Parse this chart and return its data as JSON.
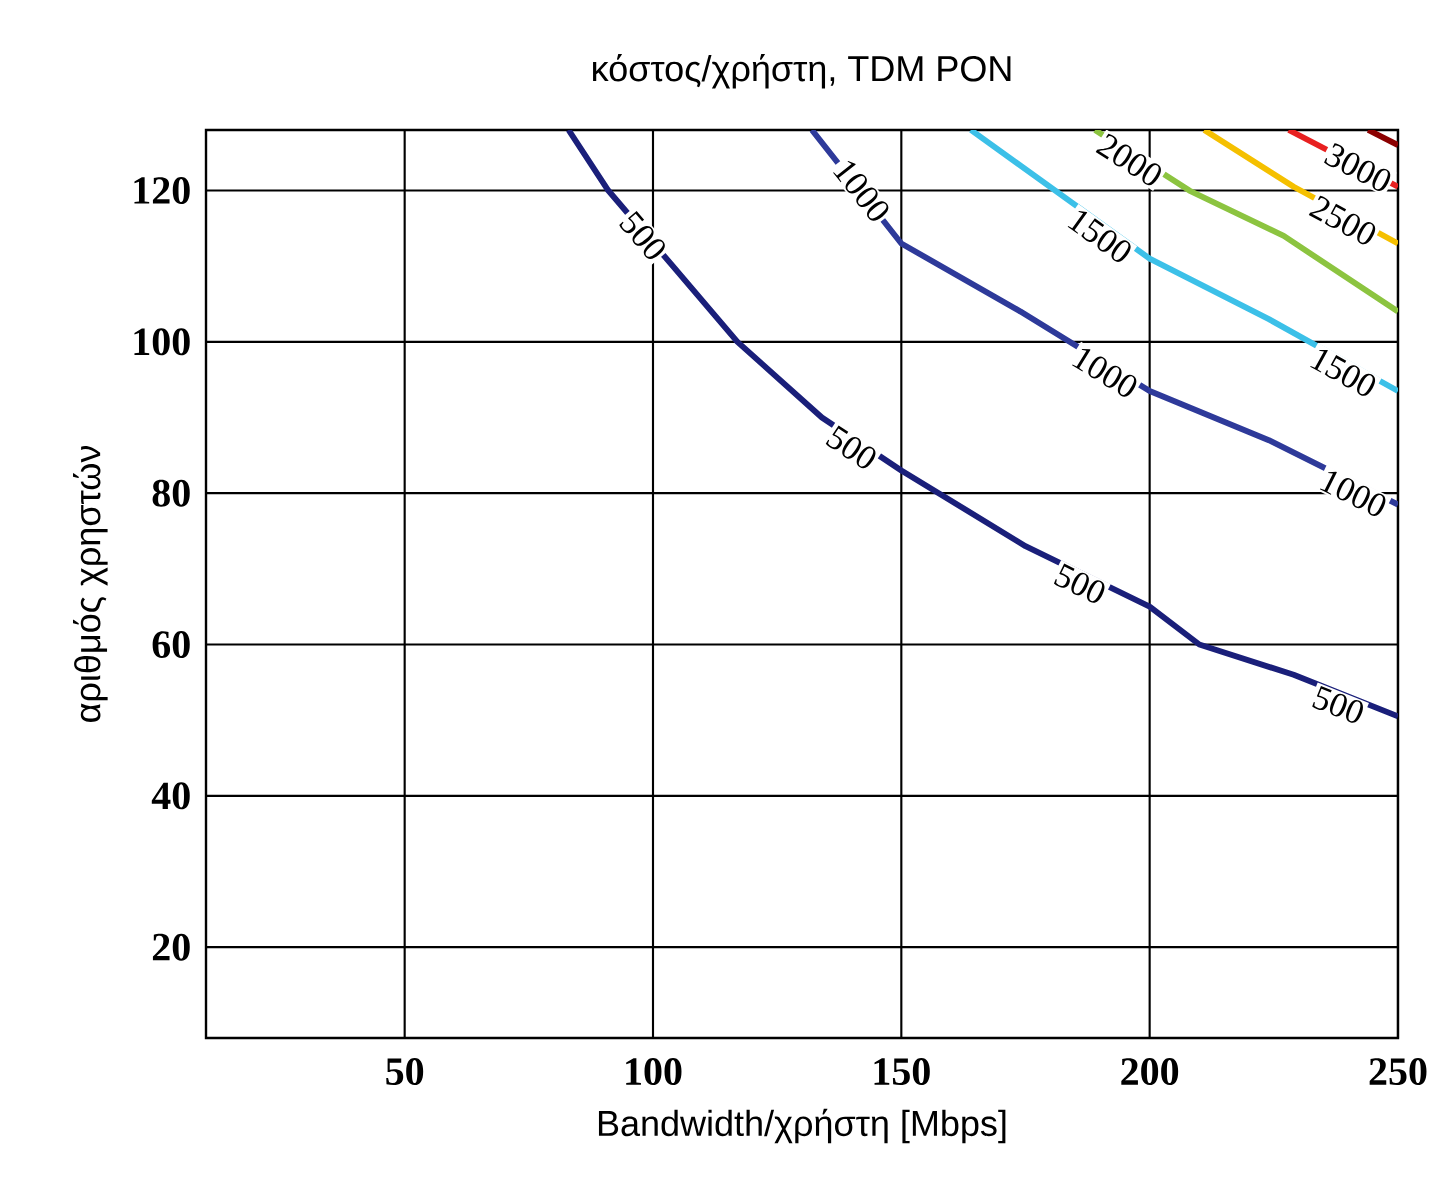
{
  "chart_data": {
    "type": "line",
    "title": "κόστος/χρήστη, TDM PON",
    "xlabel": "Bandwidth/χρήστη [Mbps]",
    "ylabel": "αριθμός χρηστών",
    "xlim": [
      10,
      250
    ],
    "ylim": [
      8,
      128
    ],
    "xticks": [
      50,
      100,
      150,
      200,
      250
    ],
    "yticks": [
      20,
      40,
      60,
      80,
      100,
      120
    ],
    "grid": true,
    "marker": "none",
    "series": [
      {
        "color": "#1a1f7a",
        "x": [
          83,
          91,
          104,
          117,
          134,
          150,
          175,
          200,
          210,
          229,
          250
        ],
        "values": [
          128,
          120,
          110,
          100,
          90,
          83,
          73,
          65,
          60,
          56,
          50.5
        ]
      },
      {
        "color": "#2e3a9a",
        "x": [
          132,
          150,
          174,
          200,
          224,
          250
        ],
        "values": [
          128,
          113,
          104,
          93.5,
          87,
          78.5
        ]
      },
      {
        "color": "#3cc0e8",
        "x": [
          164,
          181,
          200,
          224,
          250
        ],
        "values": [
          128,
          120,
          111,
          103,
          93.5
        ]
      },
      {
        "color": "#8cc440",
        "x": [
          189,
          208,
          227,
          250
        ],
        "values": [
          128,
          120,
          114,
          104
        ]
      },
      {
        "color": "#f5c000",
        "x": [
          211,
          229,
          250
        ],
        "values": [
          128,
          120.5,
          113
        ]
      },
      {
        "color": "#e82020",
        "x": [
          228,
          250
        ],
        "values": [
          128,
          120.5
        ]
      },
      {
        "color": "#8b0000",
        "x": [
          244,
          250
        ],
        "values": [
          128,
          126
        ]
      }
    ],
    "annotations": [
      {
        "text": "500",
        "x": 98,
        "y": 114
      },
      {
        "text": "500",
        "x": 140,
        "y": 86
      },
      {
        "text": "500",
        "x": 186,
        "y": 68
      },
      {
        "text": "500",
        "x": 238,
        "y": 52
      },
      {
        "text": "1000",
        "x": 142,
        "y": 120
      },
      {
        "text": "1000",
        "x": 191,
        "y": 96
      },
      {
        "text": "1000",
        "x": 241,
        "y": 80
      },
      {
        "text": "1500",
        "x": 190,
        "y": 114
      },
      {
        "text": "1500",
        "x": 239,
        "y": 96
      },
      {
        "text": "2000",
        "x": 196,
        "y": 124
      },
      {
        "text": "2500",
        "x": 239,
        "y": 116
      },
      {
        "text": "3000",
        "x": 242,
        "y": 123
      }
    ]
  }
}
